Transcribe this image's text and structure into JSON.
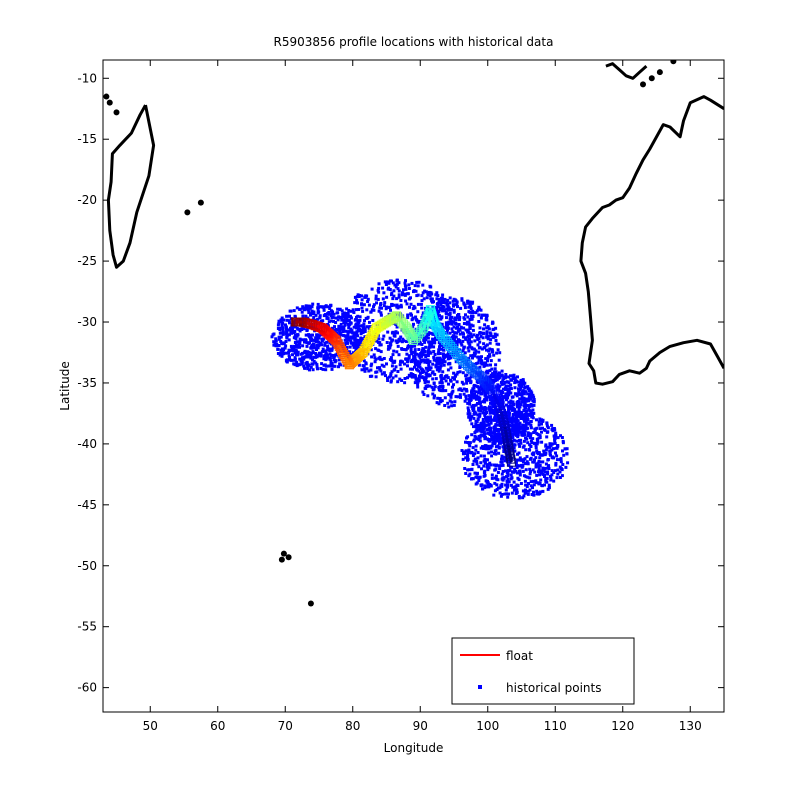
{
  "chart_data": {
    "type": "scatter",
    "title": "R5903856 profile locations with historical data",
    "xlabel": "Longitude",
    "ylabel": "Latitude",
    "xlim": [
      43,
      135
    ],
    "ylim": [
      -62,
      -8.5
    ],
    "xticks": [
      50,
      60,
      70,
      80,
      90,
      100,
      110,
      120,
      130
    ],
    "yticks": [
      -10,
      -15,
      -20,
      -25,
      -30,
      -35,
      -40,
      -45,
      -50,
      -55,
      -60
    ],
    "grid": false,
    "legend": {
      "placement": "bottom-right",
      "entries": [
        {
          "label": "float",
          "marker": "line",
          "color": "#ff0000"
        },
        {
          "label": "historical points",
          "marker": "dot",
          "color": "#0000ff"
        }
      ]
    },
    "series": [
      {
        "name": "float",
        "color_map": "jet (dark blue to dark red along the trajectory)",
        "path_lon": [
          103.5,
          103.0,
          102.5,
          101.8,
          100.5,
          99.0,
          97.5,
          96.0,
          94.5,
          93.0,
          92.0,
          91.5,
          90.5,
          89.0,
          88.0,
          86.5,
          85.0,
          83.5,
          82.5,
          81.5,
          80.5,
          79.5,
          78.5,
          77.5,
          76.5,
          75.5,
          74.0,
          72.5,
          71.5
        ],
        "path_lat": [
          -41.5,
          -40.0,
          -38.5,
          -37.0,
          -35.5,
          -34.5,
          -33.8,
          -33.0,
          -32.0,
          -31.0,
          -30.0,
          -29.0,
          -30.5,
          -31.5,
          -30.5,
          -29.5,
          -30.0,
          -30.5,
          -31.5,
          -32.5,
          -33.0,
          -33.5,
          -32.5,
          -31.5,
          -31.0,
          -30.5,
          -30.2,
          -30.0,
          -30.0
        ]
      },
      {
        "name": "historical points",
        "color": "#0000ff",
        "regions": [
          {
            "lon_range": [
              68,
              82
            ],
            "lat_range": [
              -34,
              -28.5
            ]
          },
          {
            "lon_range": [
              78,
              96
            ],
            "lat_range": [
              -35,
              -26.5
            ]
          },
          {
            "lon_range": [
              88,
              102
            ],
            "lat_range": [
              -37,
              -28
            ]
          },
          {
            "lon_range": [
              97,
              107
            ],
            "lat_range": [
              -40,
              -34
            ]
          },
          {
            "lon_range": [
              96,
              112
            ],
            "lat_range": [
              -44.5,
              -37.5
            ]
          }
        ]
      }
    ],
    "coastlines": {
      "madagascar_lon": [
        49.3,
        50.5,
        49.8,
        48.0,
        47.0,
        46.0,
        45.0,
        44.5,
        44.0,
        43.8,
        44.2,
        44.4,
        45.5,
        47.2,
        48.5,
        49.0,
        49.3
      ],
      "madagascar_lat": [
        -12.2,
        -15.5,
        -18.0,
        -21.0,
        -23.5,
        -25.0,
        -25.5,
        -24.5,
        -22.5,
        -20.0,
        -18.5,
        -16.2,
        -15.5,
        -14.5,
        -13.0,
        -12.5,
        -12.2
      ],
      "australia_lon": [
        135.0,
        133.0,
        132.0,
        130.0,
        129.0,
        128.5,
        127.0,
        126.0,
        124.0,
        123.0,
        122.0,
        121.0,
        120.0,
        119.0,
        118.0,
        117.0,
        115.5,
        114.5,
        114.0,
        113.8,
        114.5,
        114.9,
        115.2,
        115.5,
        115.0,
        115.7,
        116.0,
        117.0,
        118.5,
        119.5,
        121.0,
        122.5,
        123.5,
        124.0,
        125.5,
        127.0,
        129.0,
        131.0,
        133.0,
        134.0,
        135.0
      ],
      "australia_lat": [
        -12.5,
        -11.8,
        -11.5,
        -12.0,
        -13.5,
        -14.8,
        -14.0,
        -13.8,
        -15.8,
        -16.7,
        -17.8,
        -19.0,
        -19.8,
        -20.0,
        -20.4,
        -20.6,
        -21.5,
        -22.2,
        -23.5,
        -25.0,
        -26.0,
        -27.5,
        -29.5,
        -31.5,
        -33.4,
        -34.0,
        -35.0,
        -35.1,
        -34.9,
        -34.3,
        -34.0,
        -34.2,
        -33.8,
        -33.2,
        -32.5,
        -32.0,
        -31.7,
        -31.5,
        -31.8,
        -32.8,
        -33.8
      ],
      "sumatra_lon": [
        117.5,
        118.5,
        119.5,
        120.5,
        121.5,
        122.5,
        123.5
      ],
      "sumatra_lat": [
        -9.0,
        -8.8,
        -9.3,
        -9.8,
        -10.0,
        -9.5,
        -9.0
      ],
      "island_points": [
        [
          43.5,
          -11.5
        ],
        [
          44.0,
          -12.0
        ],
        [
          45.0,
          -12.8
        ],
        [
          55.5,
          -21.0
        ],
        [
          57.5,
          -20.2
        ],
        [
          69.8,
          -49.0
        ],
        [
          70.5,
          -49.3
        ],
        [
          69.5,
          -49.5
        ],
        [
          73.8,
          -53.1
        ],
        [
          127.5,
          -8.6
        ],
        [
          125.5,
          -9.5
        ],
        [
          124.3,
          -10.0
        ],
        [
          123.0,
          -10.5
        ]
      ]
    }
  }
}
